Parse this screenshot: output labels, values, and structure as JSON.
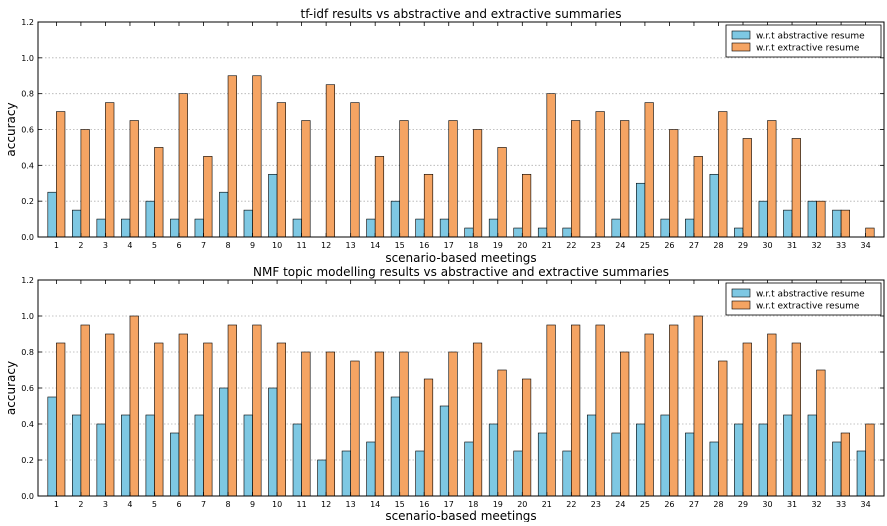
{
  "chart_data": [
    {
      "type": "bar",
      "title": "tf-idf results vs abstractive and extractive summaries",
      "xlabel": "scenario-based meetings",
      "ylabel": "accuracy",
      "ylim": [
        0,
        1.2
      ],
      "yticks": [
        "0.0",
        "0.2",
        "0.4",
        "0.6",
        "0.8",
        "1.0",
        "1.2"
      ],
      "grid": "horizontal dotted",
      "legend": "top-right",
      "categories": [
        "1",
        "2",
        "3",
        "4",
        "5",
        "6",
        "7",
        "8",
        "9",
        "10",
        "11",
        "12",
        "13",
        "14",
        "15",
        "16",
        "17",
        "18",
        "19",
        "20",
        "21",
        "22",
        "23",
        "24",
        "25",
        "26",
        "27",
        "28",
        "29",
        "30",
        "31",
        "32",
        "33",
        "34"
      ],
      "series": [
        {
          "name": "w.r.t abstractive resume",
          "color": "#7ec8e3",
          "values": [
            0.25,
            0.15,
            0.1,
            0.1,
            0.2,
            0.1,
            0.1,
            0.25,
            0.15,
            0.35,
            0.1,
            0,
            0,
            0.1,
            0.2,
            0.1,
            0.1,
            0.05,
            0.1,
            0.05,
            0.05,
            0.05,
            0,
            0.1,
            0.3,
            0.1,
            0.1,
            0.35,
            0.05,
            0.2,
            0.15,
            0.2,
            0.15,
            0
          ]
        },
        {
          "name": "w.r.t extractive resume",
          "color": "#f5a463",
          "values": [
            0.7,
            0.6,
            0.75,
            0.65,
            0.5,
            0.8,
            0.45,
            0.9,
            0.9,
            0.75,
            0.65,
            0.85,
            0.75,
            0.45,
            0.65,
            0.35,
            0.65,
            0.6,
            0.5,
            0.35,
            0.8,
            0.65,
            0.7,
            0.65,
            0.75,
            0.6,
            0.45,
            0.7,
            0.55,
            0.65,
            0.55,
            0.2,
            0.15,
            0.05
          ]
        }
      ]
    },
    {
      "type": "bar",
      "title": "NMF topic modelling results vs abstractive and extractive summaries",
      "xlabel": "scenario-based meetings",
      "ylabel": "accuracy",
      "ylim": [
        0,
        1.2
      ],
      "yticks": [
        "0.0",
        "0.2",
        "0.4",
        "0.6",
        "0.8",
        "1.0",
        "1.2"
      ],
      "grid": "horizontal dotted",
      "legend": "top-right",
      "categories": [
        "1",
        "2",
        "3",
        "4",
        "5",
        "6",
        "7",
        "8",
        "9",
        "10",
        "11",
        "12",
        "13",
        "14",
        "15",
        "16",
        "17",
        "18",
        "19",
        "20",
        "21",
        "22",
        "23",
        "24",
        "25",
        "26",
        "27",
        "28",
        "29",
        "30",
        "31",
        "32",
        "33",
        "34"
      ],
      "series": [
        {
          "name": "w.r.t abstractive resume",
          "color": "#7ec8e3",
          "values": [
            0.55,
            0.45,
            0.4,
            0.45,
            0.45,
            0.35,
            0.45,
            0.6,
            0.45,
            0.6,
            0.4,
            0.2,
            0.25,
            0.3,
            0.55,
            0.25,
            0.5,
            0.3,
            0.4,
            0.25,
            0.35,
            0.25,
            0.45,
            0.35,
            0.4,
            0.45,
            0.35,
            0.3,
            0.4,
            0.4,
            0.45,
            0.45,
            0.3,
            0.25
          ]
        },
        {
          "name": "w.r.t extractive resume",
          "color": "#f5a463",
          "values": [
            0.85,
            0.95,
            0.9,
            1.0,
            0.85,
            0.9,
            0.85,
            0.95,
            0.95,
            0.85,
            0.8,
            0.8,
            0.75,
            0.8,
            0.8,
            0.65,
            0.8,
            0.85,
            0.7,
            0.65,
            0.95,
            0.95,
            0.95,
            0.8,
            0.9,
            0.95,
            1.0,
            0.75,
            0.85,
            0.9,
            0.85,
            0.7,
            0.35,
            0.4
          ]
        }
      ]
    }
  ]
}
